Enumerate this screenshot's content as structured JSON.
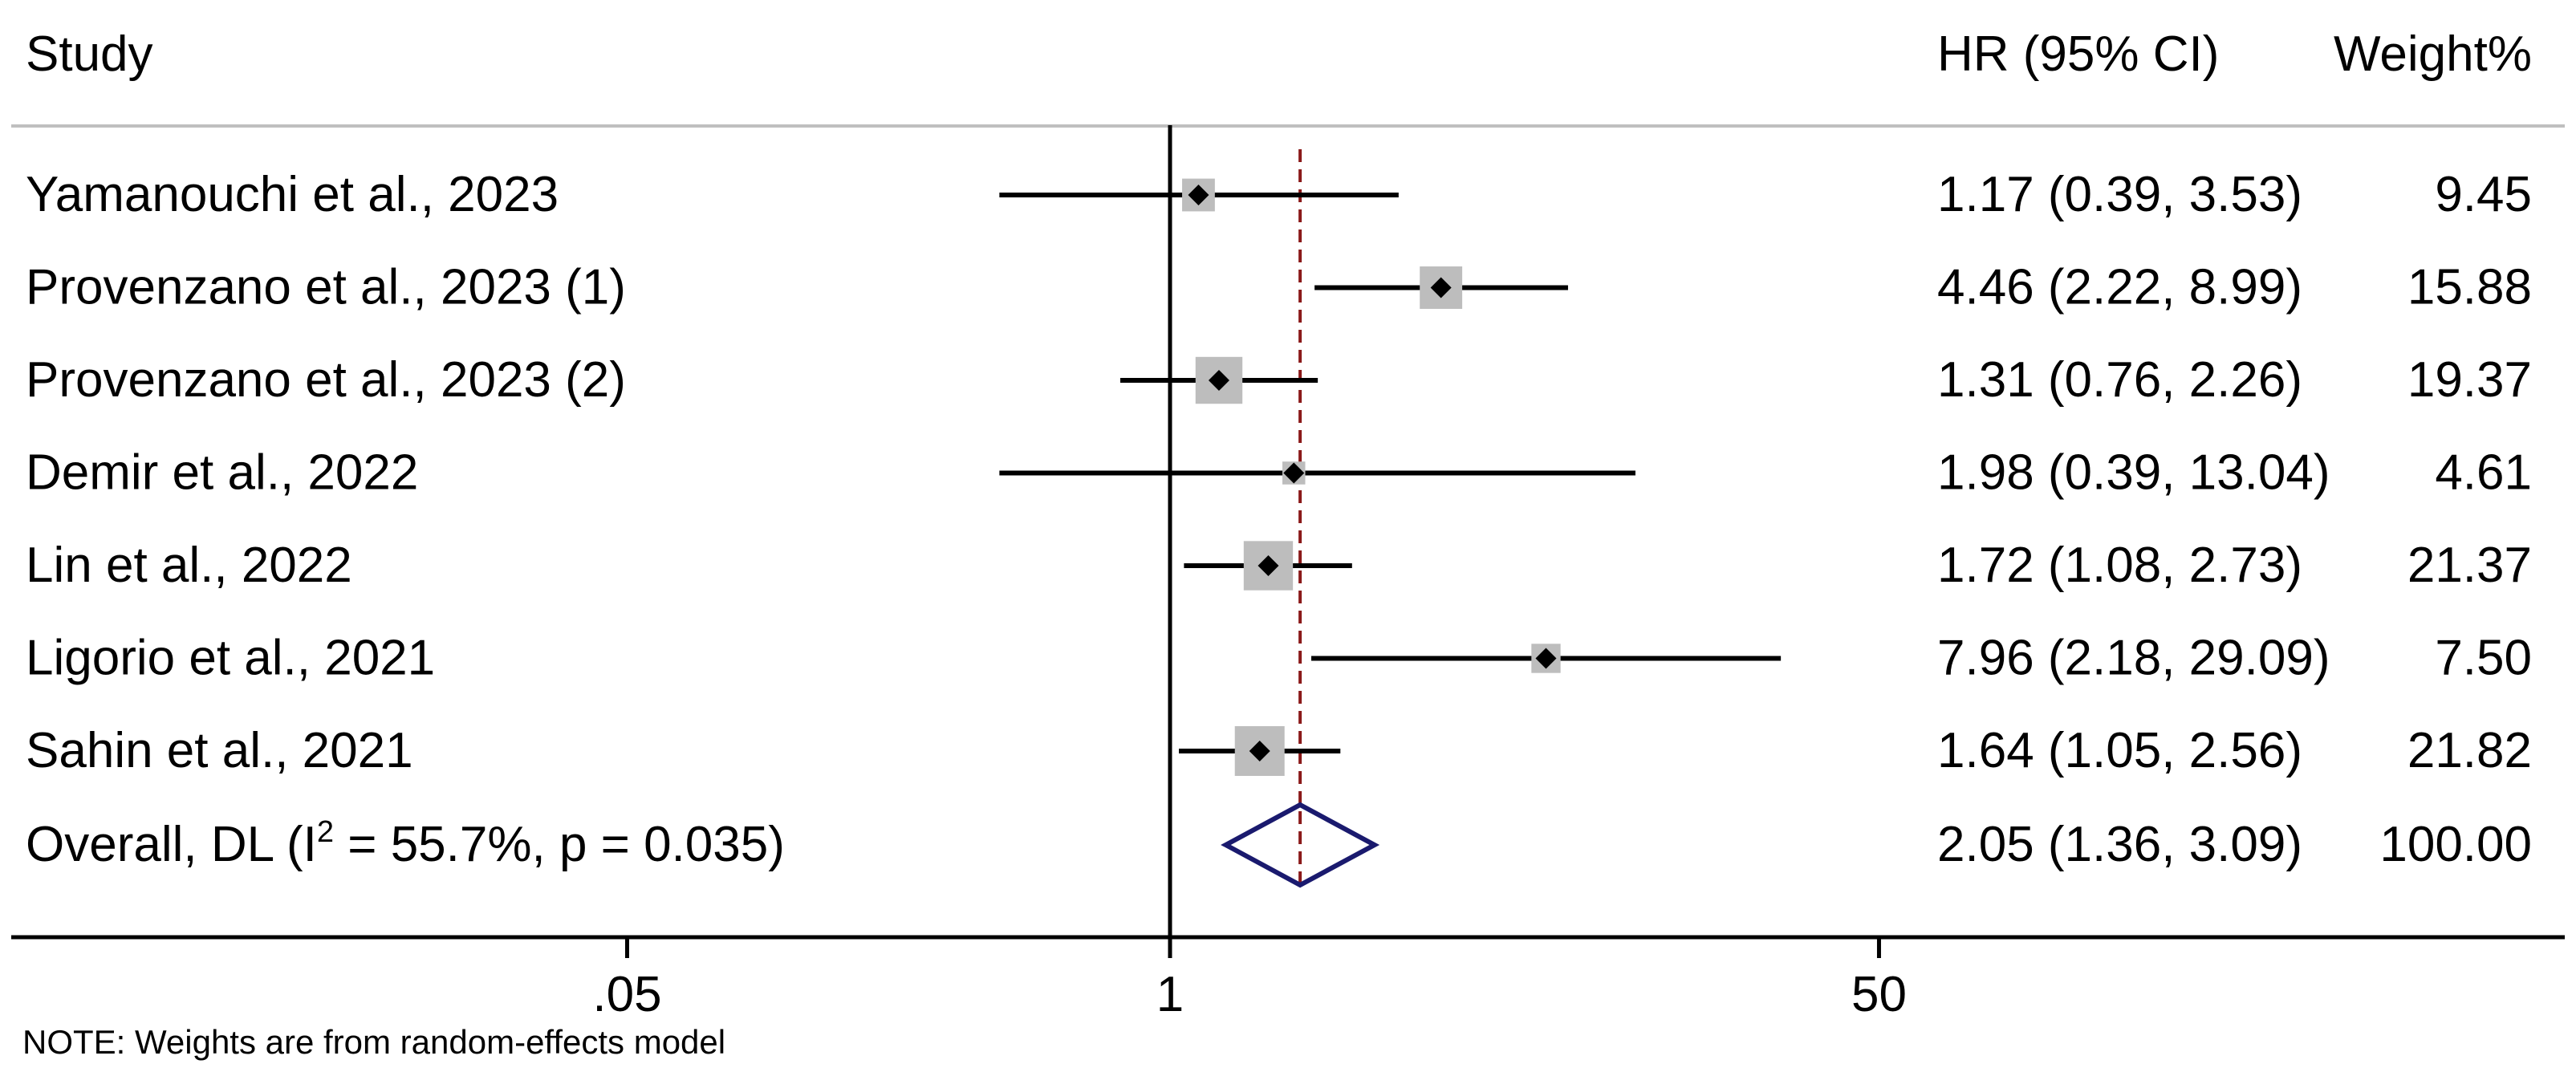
{
  "headers": {
    "study": "Study",
    "effect": "HR (95% CI)",
    "weight": "Weight%"
  },
  "rows": [
    {
      "study": "Yamanouchi et al., 2023",
      "ci_text": "1.17 (0.39, 3.53)",
      "weight_text": "9.45"
    },
    {
      "study": "Provenzano et al., 2023 (1)",
      "ci_text": "4.46 (2.22, 8.99)",
      "weight_text": "15.88"
    },
    {
      "study": "Provenzano et al., 2023 (2)",
      "ci_text": "1.31 (0.76, 2.26)",
      "weight_text": "19.37"
    },
    {
      "study": "Demir et al., 2022",
      "ci_text": "1.98 (0.39, 13.04)",
      "weight_text": "4.61"
    },
    {
      "study": "Lin et al., 2022",
      "ci_text": "1.72 (1.08, 2.73)",
      "weight_text": "21.37"
    },
    {
      "study": "Ligorio et al., 2021",
      "ci_text": "7.96 (2.18, 29.09)",
      "weight_text": "7.50"
    },
    {
      "study": "Sahin et al., 2021",
      "ci_text": "1.64 (1.05, 2.56)",
      "weight_text": "21.82"
    }
  ],
  "overall": {
    "label_prefix": "Overall, DL (I",
    "label_sup": "2",
    "label_suffix": " = 55.7%, p = 0.035)",
    "ci_text": "2.05 (1.36, 3.09)",
    "weight_text": "100.00"
  },
  "note": "NOTE: Weights are from random-effects model",
  "chart_data": {
    "type": "forest",
    "x_scale": "log",
    "xlim": [
      0.03,
      500
    ],
    "xticks": [
      0.05,
      1,
      50
    ],
    "xtick_labels": [
      ".05",
      "1",
      "50"
    ],
    "null_line": 1,
    "pooled_line": 2.05,
    "studies": [
      {
        "name": "Yamanouchi et al., 2023",
        "hr": 1.17,
        "lo": 0.39,
        "hi": 3.53,
        "weight": 9.45
      },
      {
        "name": "Provenzano et al., 2023 (1)",
        "hr": 4.46,
        "lo": 2.22,
        "hi": 8.99,
        "weight": 15.88
      },
      {
        "name": "Provenzano et al., 2023 (2)",
        "hr": 1.31,
        "lo": 0.76,
        "hi": 2.26,
        "weight": 19.37
      },
      {
        "name": "Demir et al., 2022",
        "hr": 1.98,
        "lo": 0.39,
        "hi": 13.04,
        "weight": 4.61
      },
      {
        "name": "Lin et al., 2022",
        "hr": 1.72,
        "lo": 1.08,
        "hi": 2.73,
        "weight": 21.37
      },
      {
        "name": "Ligorio et al., 2021",
        "hr": 7.96,
        "lo": 2.18,
        "hi": 29.09,
        "weight": 7.5
      },
      {
        "name": "Sahin et al., 2021",
        "hr": 1.64,
        "lo": 1.05,
        "hi": 2.56,
        "weight": 21.82
      }
    ],
    "overall": {
      "hr": 2.05,
      "lo": 1.36,
      "hi": 3.09,
      "weight": 100.0,
      "i2": 55.7,
      "p": 0.035
    },
    "colors": {
      "box": "#bdbdbd",
      "point": "#000000",
      "ci": "#000000",
      "diamond": "#1a1a6e",
      "pooled_line": "#8b1a1a",
      "rule": "#bfbfbf"
    }
  }
}
